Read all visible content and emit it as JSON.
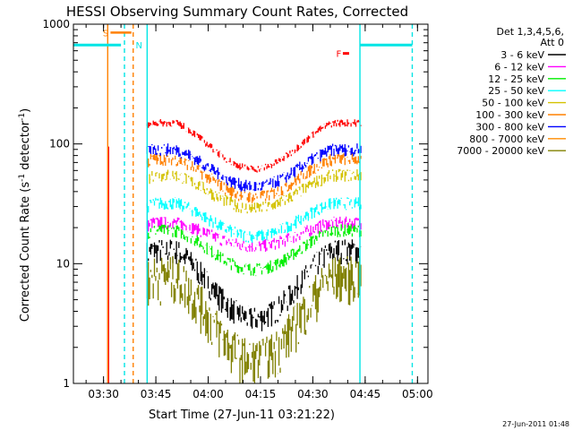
{
  "chart_data": {
    "type": "line",
    "title": "HESSI Observing Summary Count Rates, Corrected",
    "xlabel": "Start Time (27-Jun-11 03:21:22)",
    "ylabel_main": "Corrected Count Rate (s",
    "ylabel_sup1": "-1",
    "ylabel_mid": " detector",
    "ylabel_sup2": "-1",
    "ylabel_end": ")",
    "ylog": true,
    "ylim": [
      1,
      1000
    ],
    "xlim": [
      "03:21:22",
      "05:03:00"
    ],
    "x_ticks": [
      "03:30",
      "03:45",
      "04:00",
      "04:15",
      "04:30",
      "04:45",
      "05:00"
    ],
    "y_ticks": [
      "1",
      "10",
      "100",
      "1000"
    ],
    "legend_header_line1": "Det 1,3,4,5,6,",
    "legend_header_line2": "Att 0",
    "timestamp": "27-Jun-2011 01:48",
    "markers": {
      "S": {
        "label": "S",
        "color": "#ff8000"
      },
      "N": {
        "label": "N",
        "color": "#00e5e5"
      },
      "F": {
        "label": "F",
        "color": "#ff0000"
      }
    },
    "series": [
      {
        "name": "3 - 6 keV",
        "color": "#000000",
        "base": 13,
        "mid": 3.5
      },
      {
        "name": "6 - 12 keV",
        "color": "#ff00ff",
        "base": 22,
        "mid": 14
      },
      {
        "name": "12 - 25 keV",
        "color": "#00ee00",
        "base": 19,
        "mid": 9
      },
      {
        "name": "25 - 50 keV",
        "color": "#00ffff",
        "base": 32,
        "mid": 17
      },
      {
        "name": "50 - 100 keV",
        "color": "#d4c200",
        "base": 55,
        "mid": 29
      },
      {
        "name": "100 - 300 keV",
        "color": "#ff8000",
        "base": 75,
        "mid": 36
      },
      {
        "name": "300 - 800 keV",
        "color": "#0000ff",
        "base": 90,
        "mid": 44
      },
      {
        "name": "800 - 7000 keV",
        "color": "#ff8c00",
        "base": 0,
        "mid": 0
      },
      {
        "name": "7000 - 20000 keV",
        "color": "#808000",
        "base": 8,
        "mid": 1.6
      }
    ],
    "red_series": {
      "color": "#ff0000",
      "base": 150,
      "mid": 62
    }
  }
}
